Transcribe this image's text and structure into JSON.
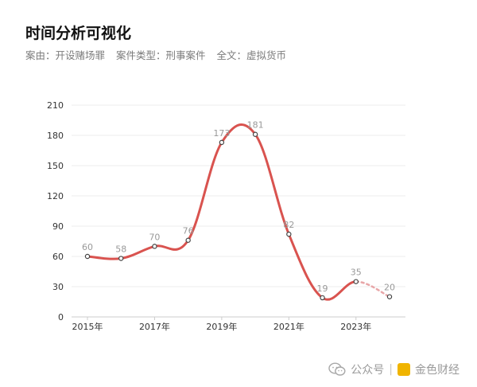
{
  "header": {
    "title": "时间分析可视化",
    "filters": [
      {
        "label": "案由：",
        "value": "开设赌场罪"
      },
      {
        "label": "案件类型：",
        "value": "刑事案件"
      },
      {
        "label": "全文：",
        "value": "虚拟货币"
      }
    ]
  },
  "watermark": {
    "icon": "wechat-icon",
    "text": "公众号",
    "brand_logo": "golden-finance-logo",
    "brand_text": "金色财经"
  },
  "chart_data": {
    "type": "line",
    "years": [
      2015,
      2016,
      2017,
      2018,
      2019,
      2020,
      2021,
      2022,
      2023,
      2024
    ],
    "values": [
      60,
      58,
      70,
      76,
      173,
      181,
      82,
      19,
      35,
      20
    ],
    "data_labels": [
      "60",
      "58",
      "70",
      "76",
      "173",
      "181",
      "82",
      "19",
      "35",
      "20"
    ],
    "x_tick_labels": [
      "2015年",
      "2017年",
      "2019年",
      "2021年",
      "2023年"
    ],
    "y_ticks": [
      0,
      30,
      60,
      90,
      120,
      150,
      180,
      210
    ],
    "ylim": [
      0,
      210
    ],
    "solid_until_index": 8,
    "grid": true,
    "colors": {
      "line": "#d9534f",
      "projection": "#e8a6a8",
      "marker_fill": "#ffffff",
      "marker_stroke": "#444444",
      "grid": "#eeeeee",
      "axis": "#cccccc",
      "label": "#999999",
      "tick": "#333333"
    }
  }
}
